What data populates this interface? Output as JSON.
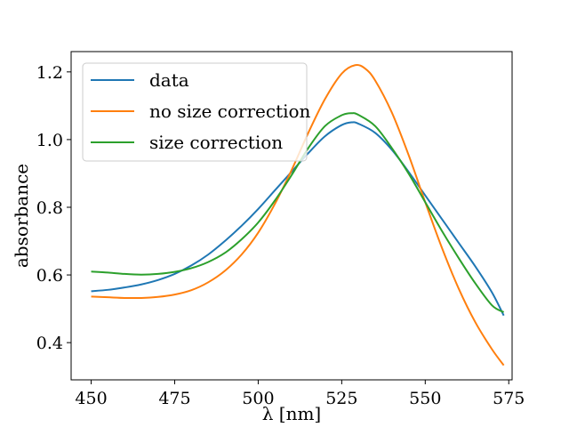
{
  "chart_data": {
    "type": "line",
    "xlabel": "λ [nm]",
    "ylabel": "absorbance",
    "xlim": [
      444,
      576
    ],
    "ylim": [
      0.29,
      1.26
    ],
    "xticks": [
      450,
      475,
      500,
      525,
      550,
      575
    ],
    "yticks": [
      0.4,
      0.6,
      0.8,
      1.0,
      1.2
    ],
    "xtick_labels": [
      "450",
      "475",
      "500",
      "525",
      "550",
      "575"
    ],
    "ytick_labels": [
      "0.4",
      "0.6",
      "0.8",
      "1.0",
      "1.2"
    ],
    "grid": false,
    "legend_position": "top-left",
    "series": [
      {
        "name": "data",
        "color": "#1f77b4",
        "x": [
          450,
          455,
          460,
          465,
          470,
          475,
          480,
          485,
          490,
          495,
          500,
          505,
          510,
          515,
          520,
          525,
          528,
          530,
          535,
          540,
          545,
          550,
          555,
          560,
          565,
          570,
          573.5
        ],
        "y": [
          0.552,
          0.556,
          0.563,
          0.572,
          0.585,
          0.603,
          0.628,
          0.66,
          0.7,
          0.745,
          0.795,
          0.85,
          0.905,
          0.96,
          1.01,
          1.043,
          1.051,
          1.047,
          1.02,
          0.97,
          0.905,
          0.835,
          0.765,
          0.695,
          0.625,
          0.548,
          0.48
        ]
      },
      {
        "name": "no size correction",
        "color": "#ff7f0e",
        "x": [
          450,
          455,
          460,
          465,
          470,
          475,
          480,
          485,
          490,
          495,
          500,
          505,
          510,
          515,
          520,
          525,
          529,
          532,
          535,
          540,
          545,
          550,
          555,
          560,
          565,
          570,
          573.5
        ],
        "y": [
          0.536,
          0.534,
          0.532,
          0.532,
          0.535,
          0.542,
          0.555,
          0.578,
          0.612,
          0.66,
          0.725,
          0.81,
          0.91,
          1.02,
          1.12,
          1.195,
          1.22,
          1.21,
          1.175,
          1.08,
          0.955,
          0.815,
          0.68,
          0.56,
          0.46,
          0.38,
          0.333
        ]
      },
      {
        "name": "size correction",
        "color": "#2ca02c",
        "x": [
          450,
          455,
          460,
          465,
          470,
          475,
          480,
          485,
          490,
          495,
          500,
          505,
          510,
          515,
          520,
          525,
          528,
          530,
          535,
          540,
          545,
          550,
          555,
          560,
          565,
          570,
          573.5
        ],
        "y": [
          0.61,
          0.607,
          0.603,
          0.601,
          0.603,
          0.609,
          0.62,
          0.638,
          0.665,
          0.705,
          0.755,
          0.82,
          0.895,
          0.975,
          1.04,
          1.072,
          1.078,
          1.073,
          1.04,
          0.975,
          0.9,
          0.815,
          0.73,
          0.65,
          0.575,
          0.51,
          0.49
        ]
      }
    ]
  }
}
